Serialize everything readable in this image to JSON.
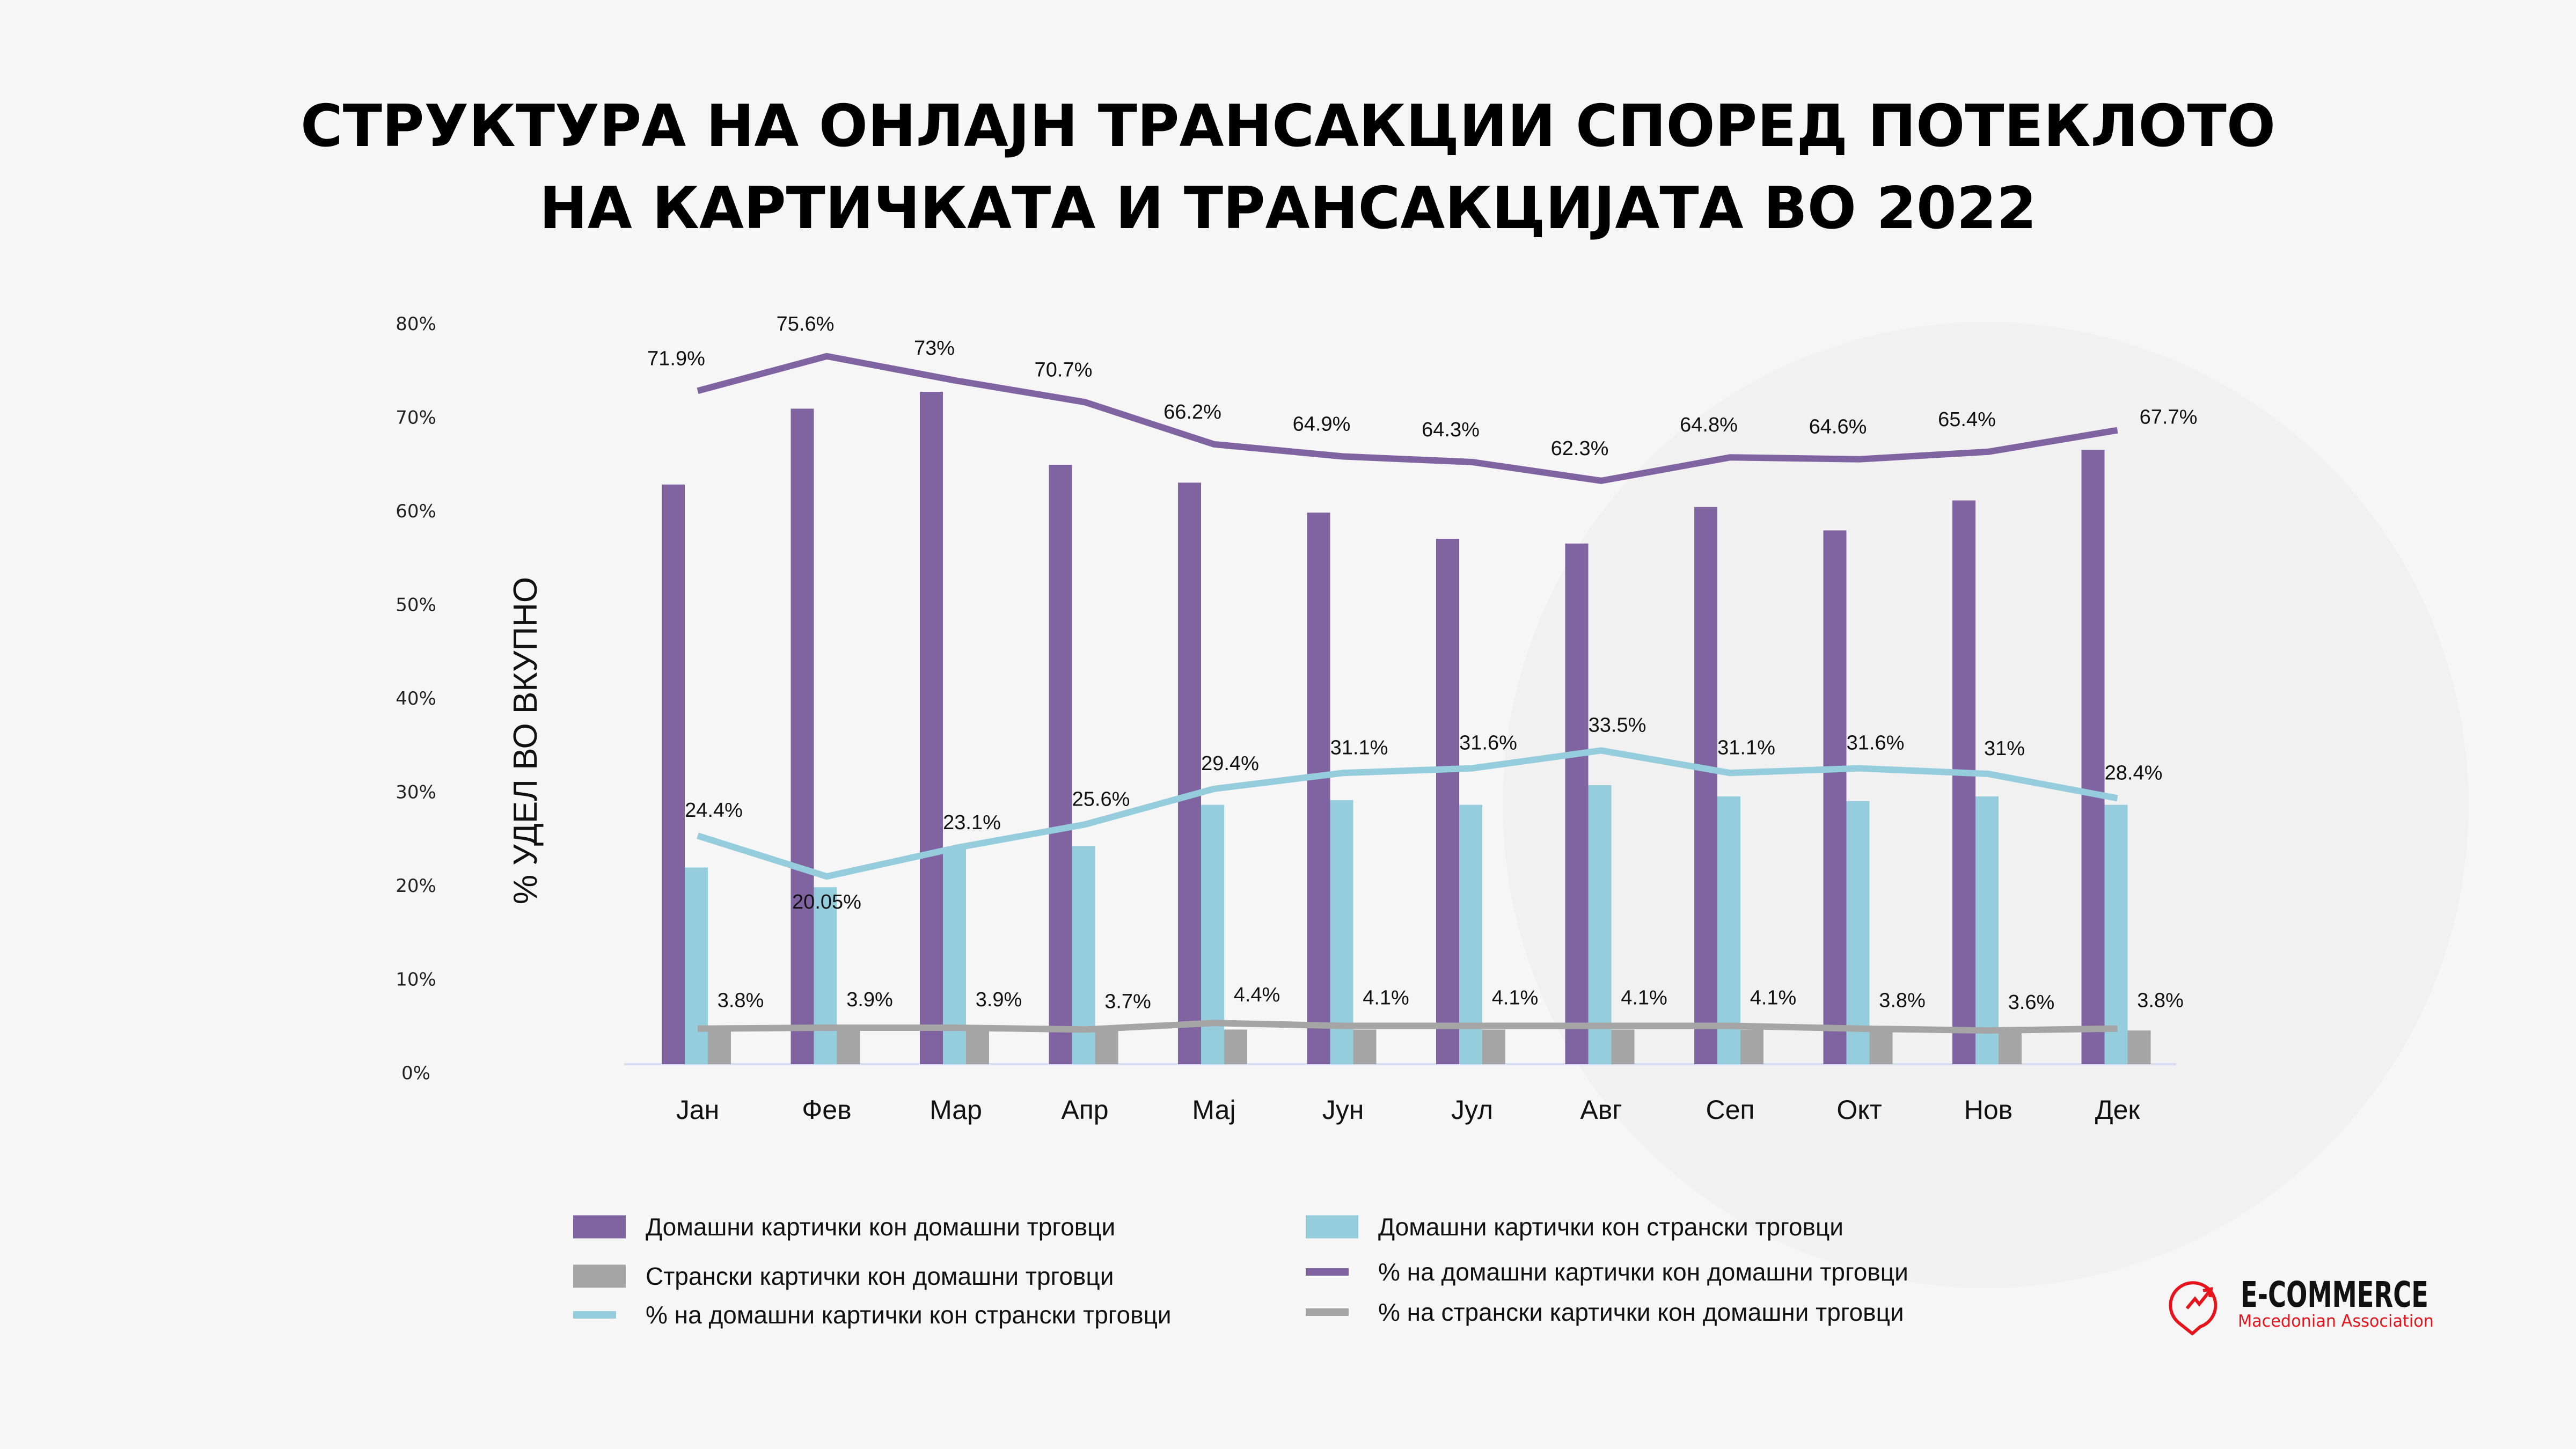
{
  "title_line1": "СТРУКТУРА НА ОНЛАЈН ТРАНСАКЦИИ СПОРЕД ПОТЕКЛОТО",
  "title_line2": "НА КАРТИЧКАТА И ТРАНСАКЦИЈАТА ВО 2022",
  "logo": {
    "name": "E-COMMERCE",
    "subtitle": "Macedonian Association",
    "color": "#e8141b"
  },
  "chart_data": {
    "type": "bar",
    "title": "СТРУКТУРА НА ОНЛАЈН ТРАНСАКЦИИ СПОРЕД ПОТЕКЛОТО НА КАРТИЧКАТА И ТРАНСАКЦИЈАТА ВО 2022",
    "xlabel": "",
    "ylabel": "% УДЕЛ ВО ВКУПНО",
    "ylim": [
      0,
      80
    ],
    "yticks": [
      "0%",
      "10%",
      "20%",
      "30%",
      "40%",
      "50%",
      "60%",
      "70%",
      "80%"
    ],
    "ytick_values": [
      0,
      10,
      20,
      30,
      40,
      50,
      60,
      70,
      80
    ],
    "grid": false,
    "legend_placement": "bottom",
    "categories": [
      "Јан",
      "Фев",
      "Мар",
      "Апр",
      "Мај",
      "Јун",
      "Јул",
      "Авг",
      "Сеп",
      "Окт",
      "Нов",
      "Дек"
    ],
    "series": [
      {
        "name": "Домашни картички кон домашни трговци",
        "kind": "bar",
        "color": "#8064a2",
        "values": [
          61.9,
          70.0,
          71.8,
          64.0,
          62.1,
          58.9,
          56.1,
          55.6,
          59.5,
          57.0,
          60.2,
          65.6
        ]
      },
      {
        "name": "Домашни картички кон странски трговци",
        "kind": "bar",
        "color": "#96cddc",
        "values": [
          21.0,
          18.9,
          23.0,
          23.3,
          27.7,
          28.2,
          27.7,
          29.8,
          28.6,
          28.1,
          28.6,
          27.7
        ]
      },
      {
        "name": "Странски картички кон домашни трговци",
        "kind": "bar",
        "color": "#a5a5a5",
        "values": [
          3.6,
          3.6,
          3.6,
          3.6,
          3.7,
          3.7,
          3.7,
          3.7,
          3.7,
          3.6,
          3.6,
          3.6
        ]
      },
      {
        "name": "% на домашни картички кон домашни трговци",
        "kind": "line",
        "color": "#8064a2",
        "values": [
          71.9,
          75.6,
          73,
          70.7,
          66.2,
          64.9,
          64.3,
          62.3,
          64.8,
          64.6,
          65.4,
          67.7
        ],
        "labels": [
          "71.9%",
          "75.6%",
          "73%",
          "70.7%",
          "66.2%",
          "64.9%",
          "64.3%",
          "62.3%",
          "64.8%",
          "64.6%",
          "65.4%",
          "67.7%"
        ]
      },
      {
        "name": "% на домашни картички кон странски трговци",
        "kind": "line",
        "color": "#96cddc",
        "values": [
          24.4,
          20.05,
          23.1,
          25.6,
          29.4,
          31.1,
          31.6,
          33.5,
          31.1,
          31.6,
          31,
          28.4
        ],
        "labels": [
          "24.4%",
          "20.05%",
          "23.1%",
          "25.6%",
          "29.4%",
          "31.1%",
          "31.6%",
          "33.5%",
          "31.1%",
          "31.6%",
          "31%",
          "28.4%"
        ]
      },
      {
        "name": "% на странски картички кон домашни трговци",
        "kind": "line",
        "color": "#a5a5a5",
        "values": [
          3.8,
          3.9,
          3.9,
          3.7,
          4.4,
          4.1,
          4.1,
          4.1,
          4.1,
          3.8,
          3.6,
          3.8
        ],
        "labels": [
          "3.8%",
          "3.9%",
          "3.9%",
          "3.7%",
          "4.4%",
          "4.1%",
          "4.1%",
          "4.1%",
          "4.1%",
          "3.8%",
          "3.6%",
          "3.8%"
        ]
      }
    ]
  }
}
